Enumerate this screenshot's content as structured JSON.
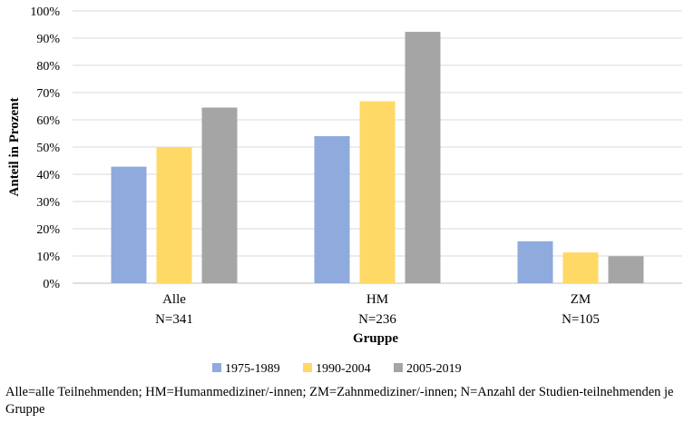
{
  "chart_data": {
    "type": "bar",
    "categories": [
      "Alle",
      "HM",
      "ZM"
    ],
    "category_sublabels": [
      "N=341",
      "N=236",
      "N=105"
    ],
    "series": [
      {
        "name": "1975-1989",
        "color": "#8FAADC",
        "values": [
          42.8,
          54.0,
          15.4
        ]
      },
      {
        "name": "1990-2004",
        "color": "#FFD966",
        "values": [
          49.8,
          66.8,
          11.3
        ]
      },
      {
        "name": "2005-2019",
        "color": "#A5A5A5",
        "values": [
          64.5,
          92.3,
          9.9
        ]
      }
    ],
    "xlabel": "Gruppe",
    "ylabel": "Anteil in Prozent",
    "ylim": [
      0,
      100
    ],
    "ytick_step": 10,
    "ytick_suffix": "%",
    "grid": true,
    "legend_position": "bottom"
  },
  "footnote": "Alle=alle Teilnehmenden; HM=Humanmediziner/-innen; ZM=Zahnmediziner/-innen; N=Anzahl der Studien-teilnehmenden je Gruppe"
}
